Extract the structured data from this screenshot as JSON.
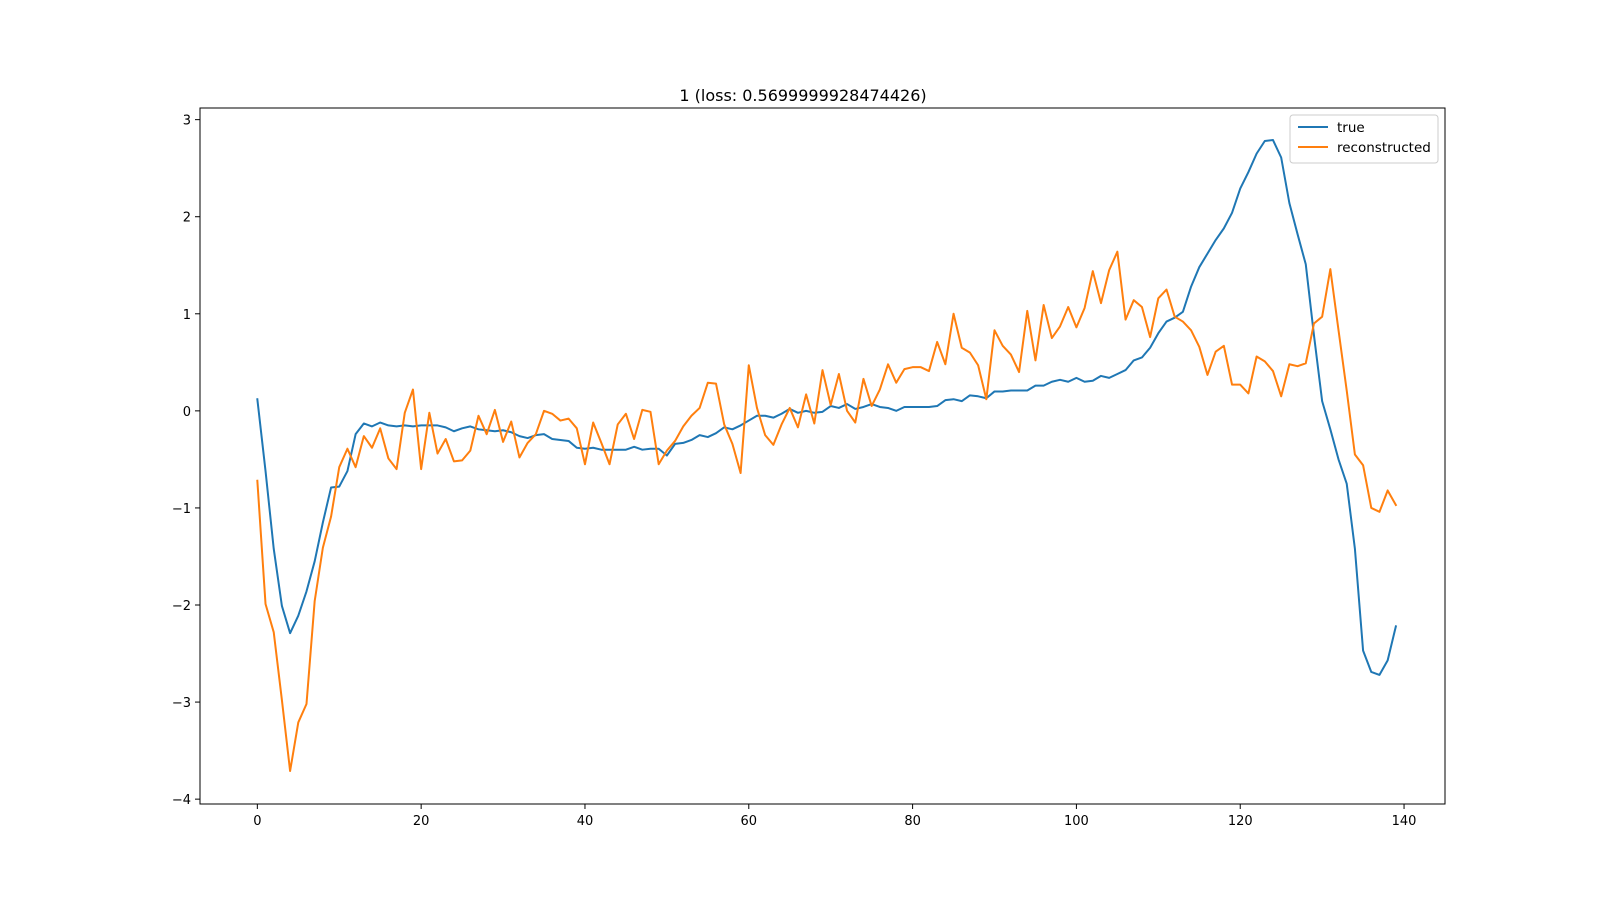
{
  "chart_data": {
    "type": "line",
    "title": "1 (loss: 0.5699999928474426)",
    "xlabel": "",
    "ylabel": "",
    "xlim": [
      -7,
      145
    ],
    "ylim": [
      -4.05,
      3.12
    ],
    "xticks": [
      0,
      20,
      40,
      60,
      80,
      100,
      120,
      140
    ],
    "yticks": [
      3,
      2,
      1,
      0,
      -1,
      -2,
      -3,
      -4
    ],
    "ytick_labels": [
      "3",
      "2",
      "1",
      "0",
      "−1",
      "−2",
      "−3",
      "−4"
    ],
    "grid": false,
    "legend": "top-right",
    "series": [
      {
        "name": "true",
        "color": "#1f77b4",
        "values": [
          0.12,
          -0.62,
          -1.42,
          -2.01,
          -2.29,
          -2.11,
          -1.86,
          -1.55,
          -1.15,
          -0.79,
          -0.78,
          -0.62,
          -0.24,
          -0.13,
          -0.16,
          -0.12,
          -0.15,
          -0.16,
          -0.15,
          -0.16,
          -0.15,
          -0.15,
          -0.15,
          -0.17,
          -0.21,
          -0.18,
          -0.16,
          -0.19,
          -0.2,
          -0.21,
          -0.2,
          -0.22,
          -0.26,
          -0.28,
          -0.25,
          -0.24,
          -0.29,
          -0.3,
          -0.31,
          -0.38,
          -0.39,
          -0.38,
          -0.4,
          -0.4,
          -0.4,
          -0.4,
          -0.37,
          -0.4,
          -0.39,
          -0.39,
          -0.46,
          -0.34,
          -0.33,
          -0.3,
          -0.25,
          -0.27,
          -0.23,
          -0.17,
          -0.19,
          -0.15,
          -0.1,
          -0.05,
          -0.05,
          -0.07,
          -0.03,
          0.02,
          -0.02,
          0.0,
          -0.02,
          -0.01,
          0.05,
          0.03,
          0.07,
          0.02,
          0.04,
          0.07,
          0.04,
          0.03,
          0.0,
          0.04,
          0.04,
          0.04,
          0.04,
          0.05,
          0.11,
          0.12,
          0.1,
          0.16,
          0.15,
          0.13,
          0.2,
          0.2,
          0.21,
          0.21,
          0.21,
          0.26,
          0.26,
          0.3,
          0.32,
          0.3,
          0.34,
          0.3,
          0.31,
          0.36,
          0.34,
          0.38,
          0.42,
          0.52,
          0.55,
          0.65,
          0.8,
          0.92,
          0.96,
          1.02,
          1.28,
          1.48,
          1.62,
          1.76,
          1.88,
          2.04,
          2.29,
          2.46,
          2.65,
          2.78,
          2.79,
          2.61,
          2.14,
          1.82,
          1.51,
          0.78,
          0.1,
          -0.19,
          -0.5,
          -0.75,
          -1.42,
          -2.47,
          -2.69,
          -2.72,
          -2.57,
          -2.22
        ]
      },
      {
        "name": "reconstructed",
        "color": "#ff7f0e",
        "values": [
          -0.72,
          -1.99,
          -2.28,
          -2.98,
          -3.71,
          -3.21,
          -3.02,
          -1.96,
          -1.41,
          -1.09,
          -0.58,
          -0.39,
          -0.58,
          -0.26,
          -0.38,
          -0.18,
          -0.49,
          -0.6,
          -0.02,
          0.22,
          -0.6,
          -0.02,
          -0.44,
          -0.29,
          -0.52,
          -0.51,
          -0.41,
          -0.05,
          -0.24,
          0.01,
          -0.32,
          -0.11,
          -0.48,
          -0.33,
          -0.24,
          0.0,
          -0.03,
          -0.1,
          -0.08,
          -0.18,
          -0.55,
          -0.12,
          -0.33,
          -0.55,
          -0.14,
          -0.03,
          -0.29,
          0.01,
          -0.01,
          -0.55,
          -0.41,
          -0.31,
          -0.16,
          -0.05,
          0.03,
          0.29,
          0.28,
          -0.14,
          -0.34,
          -0.64,
          0.47,
          0.03,
          -0.25,
          -0.35,
          -0.14,
          0.03,
          -0.17,
          0.17,
          -0.13,
          0.42,
          0.06,
          0.38,
          0.0,
          -0.12,
          0.33,
          0.05,
          0.22,
          0.48,
          0.29,
          0.43,
          0.45,
          0.45,
          0.41,
          0.71,
          0.48,
          1.0,
          0.65,
          0.6,
          0.47,
          0.12,
          0.83,
          0.67,
          0.58,
          0.4,
          1.03,
          0.52,
          1.09,
          0.75,
          0.87,
          1.07,
          0.86,
          1.06,
          1.44,
          1.11,
          1.45,
          1.64,
          0.94,
          1.14,
          1.07,
          0.76,
          1.16,
          1.25,
          0.97,
          0.92,
          0.83,
          0.66,
          0.37,
          0.61,
          0.67,
          0.27,
          0.27,
          0.18,
          0.56,
          0.51,
          0.41,
          0.15,
          0.48,
          0.46,
          0.49,
          0.9,
          0.97,
          1.46,
          0.83,
          0.21,
          -0.45,
          -0.56,
          -1.0,
          -1.04,
          -0.82,
          -0.97
        ]
      }
    ]
  }
}
